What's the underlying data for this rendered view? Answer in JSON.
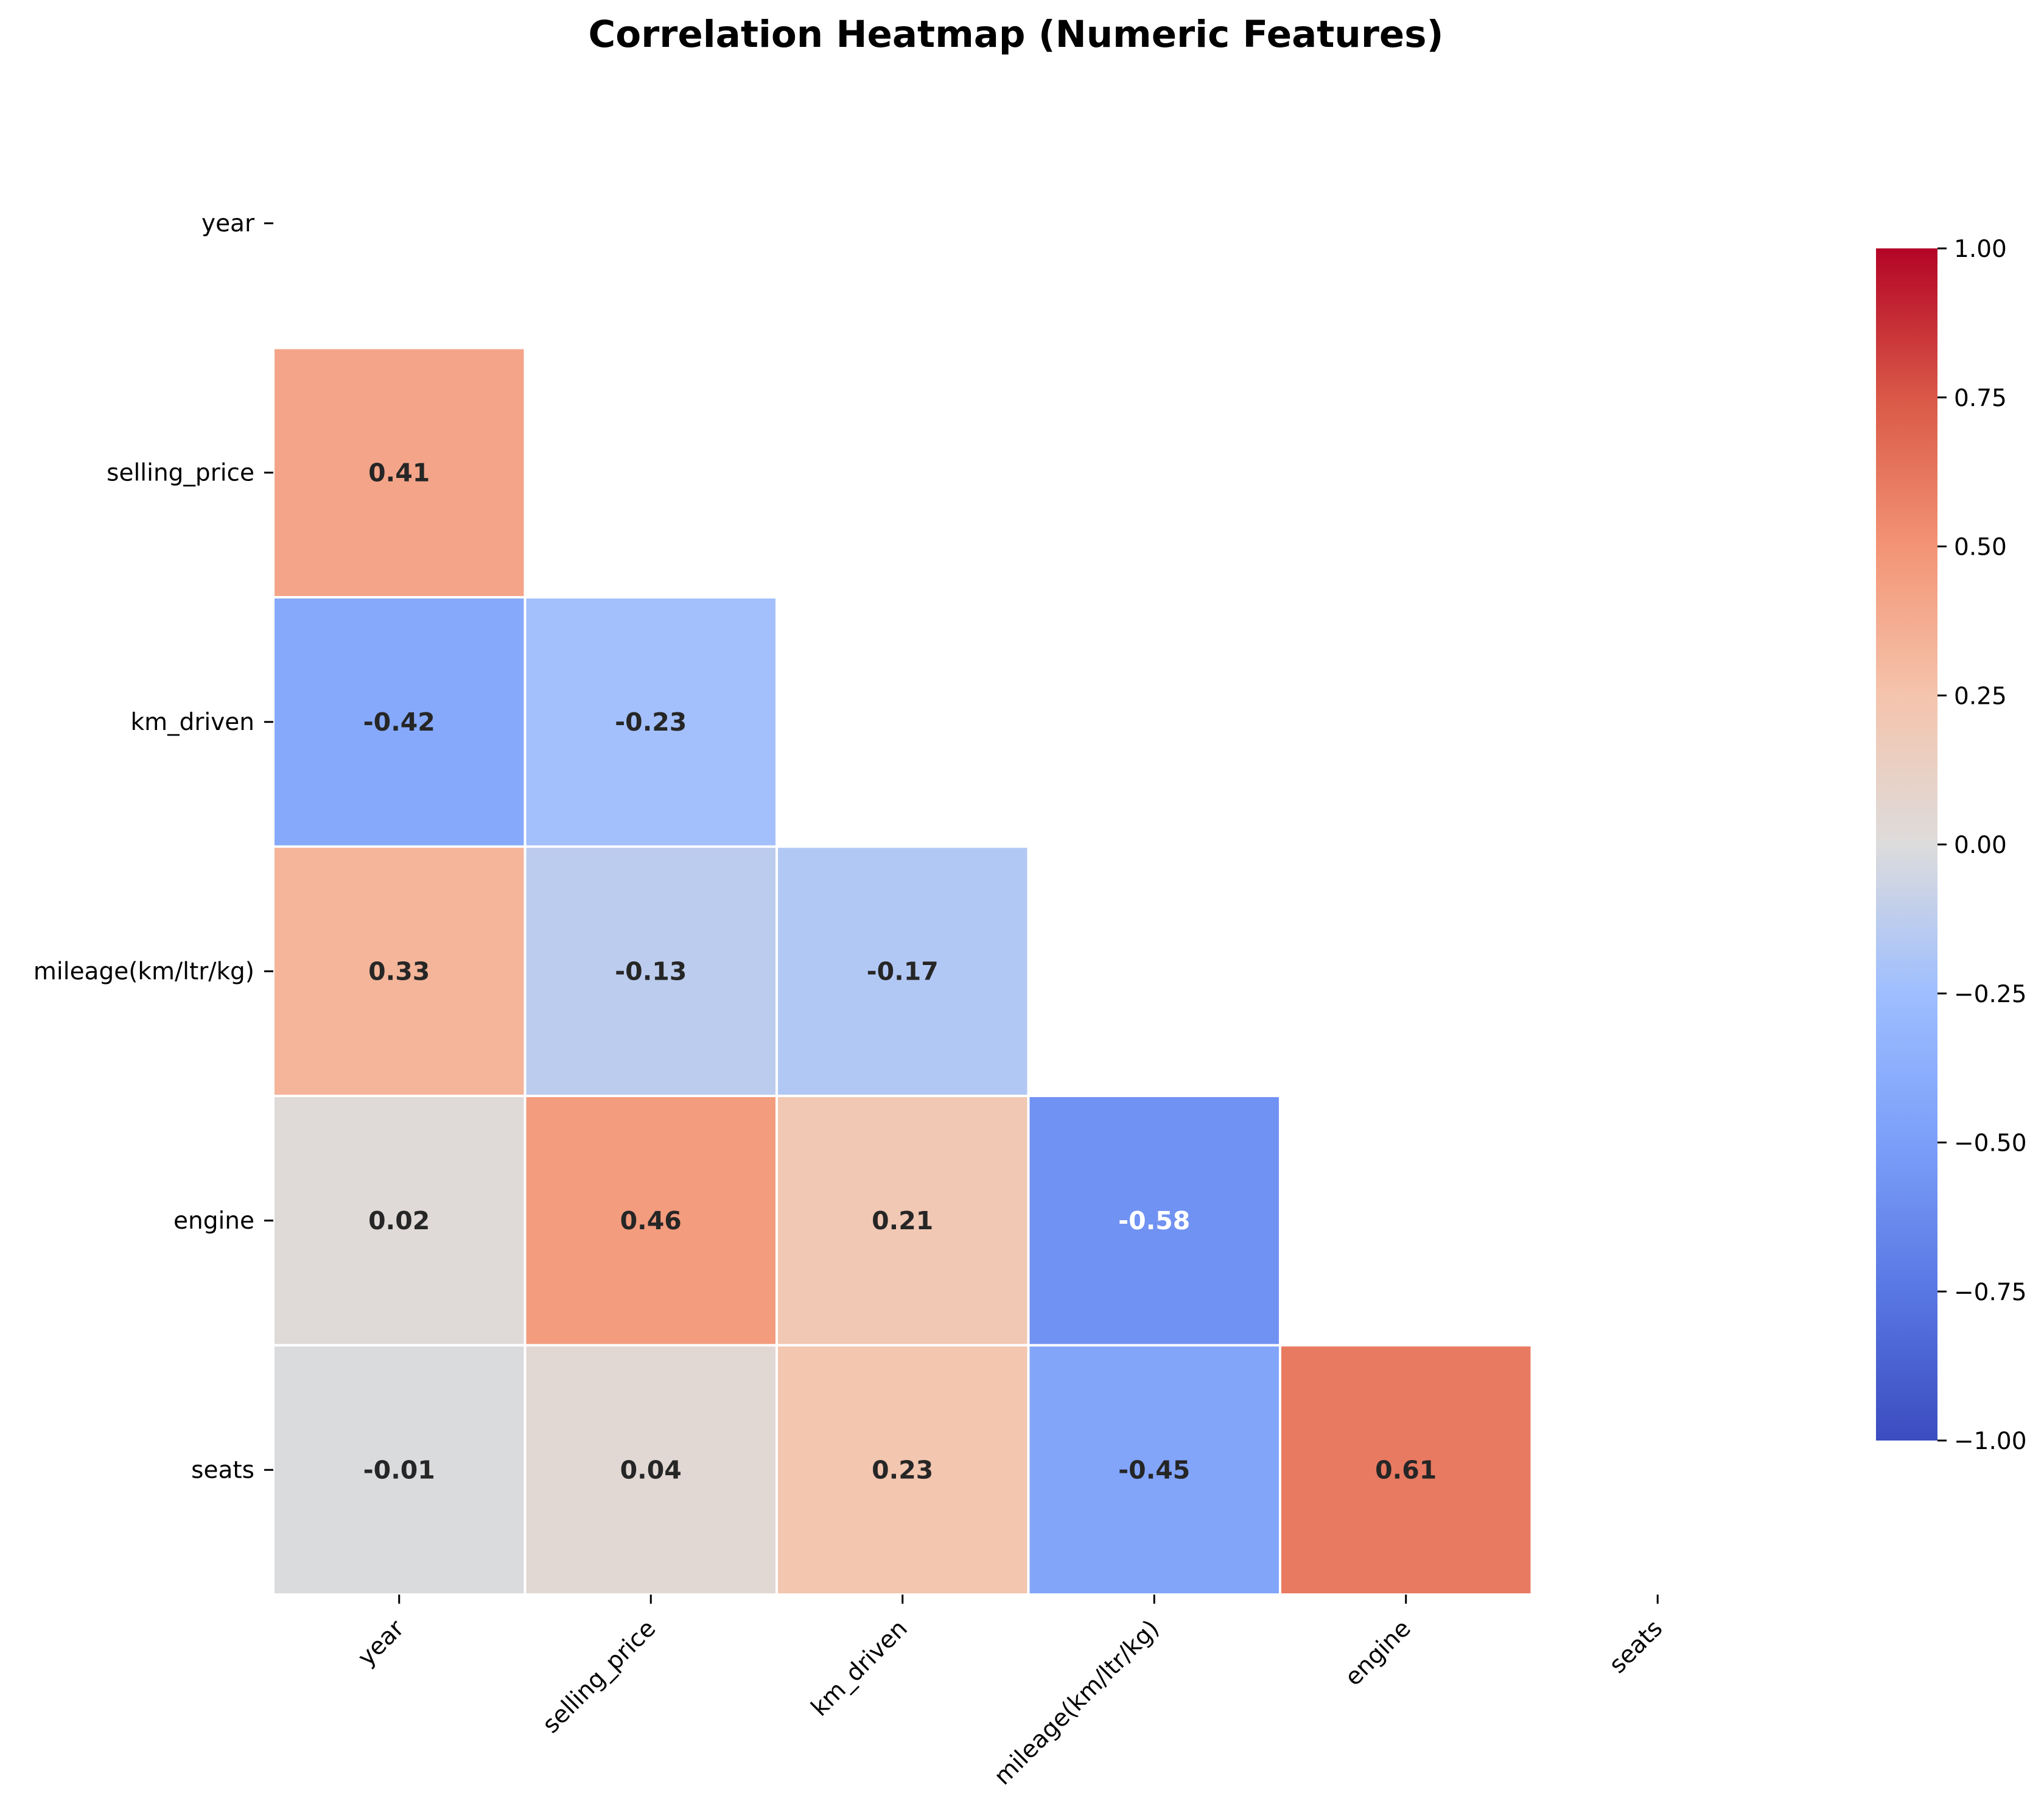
{
  "chart_data": {
    "type": "heatmap",
    "title": "Correlation Heatmap (Numeric Features)",
    "xlabel": "",
    "ylabel": "",
    "variables": [
      "year",
      "selling_price",
      "km_driven",
      "mileage(km/ltr/kg)",
      "engine",
      "seats"
    ],
    "mask": "upper-triangle including diagonal",
    "cells": [
      {
        "row": "selling_price",
        "col": "year",
        "value": 0.41,
        "label": "0.41"
      },
      {
        "row": "km_driven",
        "col": "year",
        "value": -0.42,
        "label": "-0.42"
      },
      {
        "row": "km_driven",
        "col": "selling_price",
        "value": -0.23,
        "label": "-0.23"
      },
      {
        "row": "mileage(km/ltr/kg)",
        "col": "year",
        "value": 0.33,
        "label": "0.33"
      },
      {
        "row": "mileage(km/ltr/kg)",
        "col": "selling_price",
        "value": -0.13,
        "label": "-0.13"
      },
      {
        "row": "mileage(km/ltr/kg)",
        "col": "km_driven",
        "value": -0.17,
        "label": "-0.17"
      },
      {
        "row": "engine",
        "col": "year",
        "value": 0.02,
        "label": "0.02"
      },
      {
        "row": "engine",
        "col": "selling_price",
        "value": 0.46,
        "label": "0.46"
      },
      {
        "row": "engine",
        "col": "km_driven",
        "value": 0.21,
        "label": "0.21"
      },
      {
        "row": "engine",
        "col": "mileage(km/ltr/kg)",
        "value": -0.58,
        "label": "-0.58"
      },
      {
        "row": "seats",
        "col": "year",
        "value": -0.01,
        "label": "-0.01"
      },
      {
        "row": "seats",
        "col": "selling_price",
        "value": 0.04,
        "label": "0.04"
      },
      {
        "row": "seats",
        "col": "km_driven",
        "value": 0.23,
        "label": "0.23"
      },
      {
        "row": "seats",
        "col": "mileage(km/ltr/kg)",
        "value": -0.45,
        "label": "-0.45"
      },
      {
        "row": "seats",
        "col": "engine",
        "value": 0.61,
        "label": "0.61"
      }
    ],
    "colormap": "coolwarm",
    "vmin": -1.0,
    "vmax": 1.0,
    "colorbar": {
      "ticks": [
        1.0,
        0.75,
        0.5,
        0.25,
        0.0,
        -0.25,
        -0.5,
        -0.75,
        -1.0
      ],
      "tick_labels": [
        "1.00",
        "0.75",
        "0.50",
        "0.25",
        "0.00",
        "−0.25",
        "−0.50",
        "−0.75",
        "−1.00"
      ]
    },
    "grid": false,
    "legend": "right (colorbar)"
  }
}
